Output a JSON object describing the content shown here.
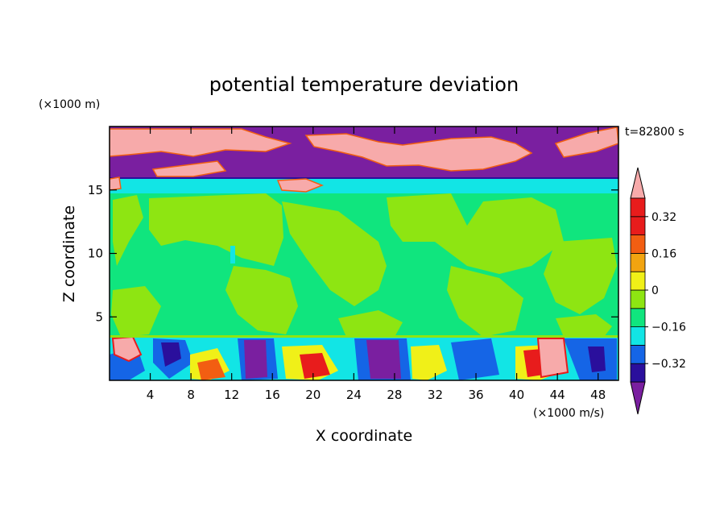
{
  "chart_data": {
    "type": "heatmap",
    "title": "potential temperature deviation",
    "xlabel": "X coordinate",
    "ylabel": "Z coordinate",
    "x_unit": "(×1000 m/s)",
    "y_unit": "(×1000 m)",
    "time_label": "t=82800 s",
    "xlim": [
      0,
      50
    ],
    "ylim": [
      0,
      20
    ],
    "x_ticks": [
      4,
      8,
      12,
      16,
      20,
      24,
      28,
      32,
      36,
      40,
      44,
      48
    ],
    "y_ticks": [
      5,
      10,
      15
    ],
    "colorbar": {
      "levels": [
        -0.4,
        -0.32,
        -0.24,
        -0.16,
        -0.08,
        0,
        0.08,
        0.16,
        0.24,
        0.32,
        0.4
      ],
      "labeled_ticks": [
        0.32,
        0.16,
        0,
        -0.16,
        -0.32
      ],
      "colors": [
        "#7a1fa0",
        "#2a0f9c",
        "#1565e6",
        "#12e5e5",
        "#10e57e",
        "#8ee512",
        "#f0f018",
        "#f2a410",
        "#f25e12",
        "#e81c1c",
        "#f7aaaa"
      ],
      "extend": "both"
    },
    "fields": {
      "stratosphere": {
        "z_range": [
          16,
          20
        ],
        "dominant": [
          -0.4,
          0.4
        ]
      },
      "tropopause_band": {
        "z_range": [
          14.7,
          16
        ],
        "value": -0.12
      },
      "free_troposphere": {
        "z_range": [
          3.5,
          14.7
        ],
        "values": [
          -0.04,
          0.04
        ]
      },
      "boundary_layer": {
        "z_range": [
          0,
          3.5
        ],
        "range": [
          -0.4,
          0.4
        ]
      }
    }
  }
}
